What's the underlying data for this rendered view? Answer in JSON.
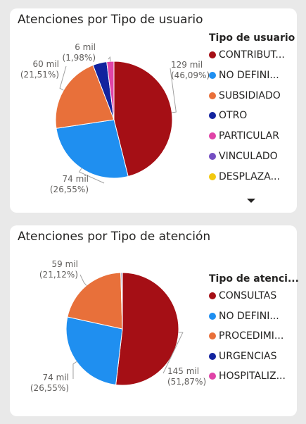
{
  "chart_data": [
    {
      "type": "pie",
      "title": "Atenciones por Tipo de usuario",
      "legend_title": "Tipo de usuario",
      "legend_position": "right",
      "categories": [
        "CONTRIBUT...",
        "NO DEFINI...",
        "SUBSIDIADO",
        "OTRO",
        "PARTICULAR",
        "VINCULADO",
        "DESPLAZA..."
      ],
      "values": [
        46.09,
        26.55,
        21.51,
        3.87,
        1.98,
        0.0,
        0.0
      ],
      "colors": [
        "#a50f15",
        "#1f8ff0",
        "#e8703a",
        "#12239e",
        "#e044a7",
        "#744ec2",
        "#f2c80f"
      ],
      "data_labels": [
        {
          "index": 0,
          "value": "129 mil",
          "pct": "(46,09%)"
        },
        {
          "index": 1,
          "value": "74 mil",
          "pct": "(26,55%)"
        },
        {
          "index": 2,
          "value": "60 mil",
          "pct": "(21,51%)"
        },
        {
          "index": 4,
          "value": "6 mil",
          "pct": "(1,98%)"
        }
      ]
    },
    {
      "type": "pie",
      "title": "Atenciones por Tipo de atención",
      "legend_title": "Tipo de atenci...",
      "legend_position": "right",
      "categories": [
        "CONSULTAS",
        "NO DEFINI...",
        "PROCEDIMI...",
        "URGENCIAS",
        "HOSPITALIZ..."
      ],
      "values": [
        51.87,
        26.55,
        21.12,
        0.3,
        0.16
      ],
      "colors": [
        "#a50f15",
        "#1f8ff0",
        "#e8703a",
        "#12239e",
        "#e044a7"
      ],
      "data_labels": [
        {
          "index": 0,
          "value": "145 mil",
          "pct": "(51,87%)"
        },
        {
          "index": 1,
          "value": "74 mil",
          "pct": "(26,55%)"
        },
        {
          "index": 2,
          "value": "59 mil",
          "pct": "(21,12%)"
        }
      ]
    }
  ]
}
